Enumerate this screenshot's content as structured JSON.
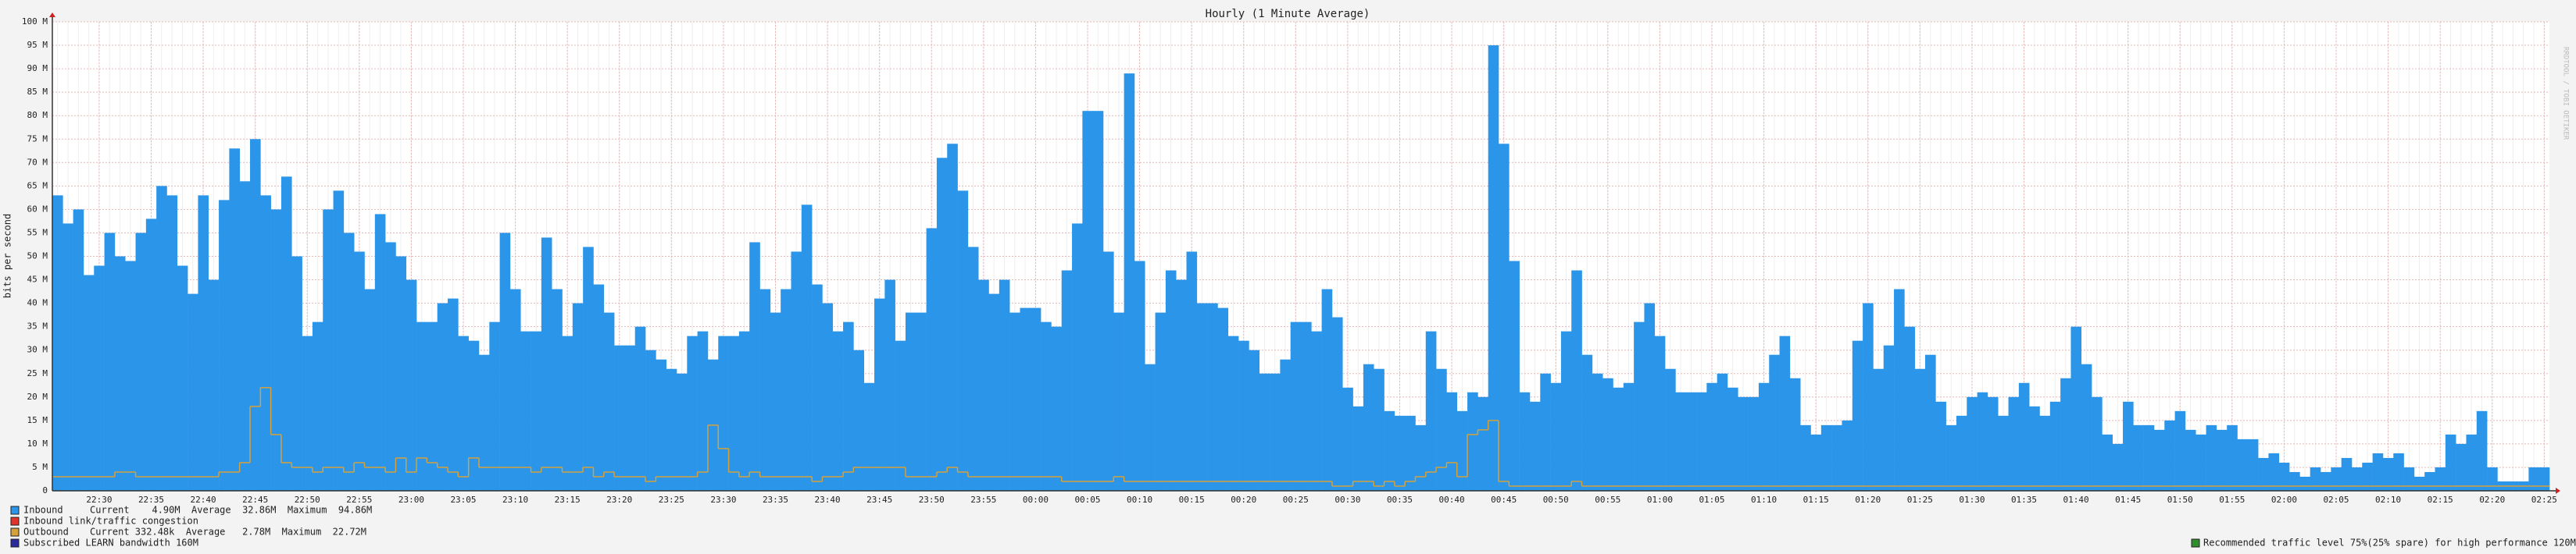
{
  "chart_data": {
    "type": "bar",
    "title": "Hourly (1 Minute Average)",
    "y_label": "bits per second",
    "watermark": "RRDTOOL / TOBI OETIKER",
    "categories": [
      null,
      null,
      null,
      null,
      "22:30",
      null,
      null,
      null,
      null,
      "22:35",
      null,
      null,
      null,
      null,
      "22:40",
      null,
      null,
      null,
      null,
      "22:45",
      null,
      null,
      null,
      null,
      "22:50",
      null,
      null,
      null,
      null,
      "22:55",
      null,
      null,
      null,
      null,
      "23:00",
      null,
      null,
      null,
      null,
      "23:05",
      null,
      null,
      null,
      null,
      "23:10",
      null,
      null,
      null,
      null,
      "23:15",
      null,
      null,
      null,
      null,
      "23:20",
      null,
      null,
      null,
      null,
      "23:25",
      null,
      null,
      null,
      null,
      "23:30",
      null,
      null,
      null,
      null,
      "23:35",
      null,
      null,
      null,
      null,
      "23:40",
      null,
      null,
      null,
      null,
      "23:45",
      null,
      null,
      null,
      null,
      "23:50",
      null,
      null,
      null,
      null,
      "23:55",
      null,
      null,
      null,
      null,
      "00:00",
      null,
      null,
      null,
      null,
      "00:05",
      null,
      null,
      null,
      null,
      "00:10",
      null,
      null,
      null,
      null,
      "00:15",
      null,
      null,
      null,
      null,
      "00:20",
      null,
      null,
      null,
      null,
      "00:25",
      null,
      null,
      null,
      null,
      "00:30",
      null,
      null,
      null,
      null,
      "00:35",
      null,
      null,
      null,
      null,
      "00:40",
      null,
      null,
      null,
      null,
      "00:45",
      null,
      null,
      null,
      null,
      "00:50",
      null,
      null,
      null,
      null,
      "00:55",
      null,
      null,
      null,
      null,
      "01:00",
      null,
      null,
      null,
      null,
      "01:05",
      null,
      null,
      null,
      null,
      "01:10",
      null,
      null,
      null,
      null,
      "01:15",
      null,
      null,
      null,
      null,
      "01:20",
      null,
      null,
      null,
      null,
      "01:25",
      null,
      null,
      null,
      null,
      "01:30",
      null,
      null,
      null,
      null,
      "01:35",
      null,
      null,
      null,
      null,
      "01:40",
      null,
      null,
      null,
      null,
      "01:45",
      null,
      null,
      null,
      null,
      "01:50",
      null,
      null,
      null,
      null,
      "01:55",
      null,
      null,
      null,
      null,
      "02:00",
      null,
      null,
      null,
      null,
      "02:05",
      null,
      null,
      null,
      null,
      "02:10",
      null,
      null,
      null,
      null,
      "02:15",
      null,
      null,
      null,
      null,
      "02:20",
      null,
      null,
      null,
      null,
      "02:25"
    ],
    "series": [
      {
        "name": "Inbound",
        "color": "#2b96e9",
        "stats": "Current    4.90M  Average  32.86M  Maximum  94.86M",
        "values": [
          63,
          57,
          60,
          46,
          48,
          55,
          50,
          49,
          55,
          58,
          65,
          63,
          48,
          42,
          63,
          45,
          62,
          73,
          66,
          75,
          63,
          60,
          67,
          50,
          33,
          36,
          60,
          64,
          55,
          51,
          43,
          59,
          53,
          50,
          45,
          36,
          36,
          40,
          41,
          33,
          32,
          29,
          36,
          55,
          43,
          34,
          34,
          54,
          43,
          33,
          40,
          52,
          44,
          38,
          31,
          31,
          35,
          30,
          28,
          26,
          25,
          33,
          34,
          28,
          33,
          33,
          34,
          53,
          43,
          38,
          43,
          51,
          61,
          44,
          40,
          34,
          36,
          30,
          23,
          41,
          45,
          32,
          38,
          38,
          56,
          71,
          74,
          64,
          52,
          45,
          42,
          45,
          38,
          39,
          39,
          36,
          35,
          47,
          57,
          81,
          81,
          51,
          38,
          89,
          49,
          27,
          38,
          47,
          45,
          51,
          40,
          40,
          39,
          33,
          32,
          30,
          25,
          25,
          28,
          36,
          36,
          34,
          43,
          37,
          22,
          18,
          27,
          26,
          17,
          16,
          16,
          14,
          34,
          26,
          21,
          17,
          21,
          20,
          95,
          74,
          49,
          21,
          19,
          25,
          23,
          34,
          47,
          29,
          25,
          24,
          22,
          23,
          36,
          40,
          33,
          26,
          21,
          21,
          21,
          23,
          25,
          22,
          20,
          20,
          23,
          29,
          33,
          24,
          14,
          12,
          14,
          14,
          15,
          32,
          40,
          26,
          31,
          43,
          35,
          26,
          29,
          19,
          14,
          16,
          20,
          21,
          20,
          16,
          20,
          23,
          18,
          16,
          19,
          24,
          35,
          27,
          20,
          12,
          10,
          19,
          14,
          14,
          13,
          15,
          17,
          13,
          12,
          14,
          13,
          14,
          11,
          11,
          7,
          8,
          6,
          4,
          3,
          5,
          4,
          5,
          7,
          5,
          6,
          8,
          7,
          8,
          5,
          3,
          4,
          5,
          12,
          10,
          12,
          17,
          5,
          2,
          2,
          2,
          5,
          5
        ]
      },
      {
        "name": "Outbound",
        "color": "#d6a13a",
        "stats": "Current 332.48k  Average   2.78M  Maximum  22.72M",
        "values": [
          3,
          3,
          3,
          3,
          3,
          3,
          4,
          4,
          3,
          3,
          3,
          3,
          3,
          3,
          3,
          3,
          4,
          4,
          6,
          18,
          22,
          12,
          6,
          5,
          5,
          4,
          5,
          5,
          4,
          6,
          5,
          5,
          4,
          7,
          4,
          7,
          6,
          5,
          4,
          3,
          7,
          5,
          5,
          5,
          5,
          5,
          4,
          5,
          5,
          4,
          4,
          5,
          3,
          4,
          3,
          3,
          3,
          2,
          3,
          3,
          3,
          3,
          4,
          14,
          9,
          4,
          3,
          4,
          3,
          3,
          3,
          3,
          3,
          2,
          3,
          3,
          4,
          5,
          5,
          5,
          5,
          5,
          3,
          3,
          3,
          4,
          5,
          4,
          3,
          3,
          3,
          3,
          3,
          3,
          3,
          3,
          3,
          2,
          2,
          2,
          2,
          2,
          3,
          2,
          2,
          2,
          2,
          2,
          2,
          2,
          2,
          2,
          2,
          2,
          2,
          2,
          2,
          2,
          2,
          2,
          2,
          2,
          2,
          1,
          1,
          2,
          2,
          1,
          2,
          1,
          2,
          3,
          4,
          5,
          6,
          3,
          12,
          13,
          15,
          2,
          1,
          1,
          1,
          1,
          1,
          1,
          2,
          1,
          1,
          1,
          1,
          1,
          1,
          1,
          1,
          1,
          1,
          1,
          1,
          1,
          1,
          1,
          1,
          1,
          1,
          1,
          1,
          1,
          1,
          1,
          1,
          1,
          1,
          1,
          1,
          1,
          1,
          1,
          1,
          1,
          1,
          1,
          1,
          1,
          1,
          1,
          1,
          1,
          1,
          1,
          1,
          1,
          1,
          1,
          1,
          1,
          1,
          1,
          1,
          1,
          1,
          1,
          1,
          1,
          1,
          1,
          1,
          1,
          1,
          1,
          1,
          1,
          1,
          1,
          1,
          1,
          1,
          1,
          1,
          1,
          1,
          1,
          1,
          1,
          1,
          1,
          1,
          1,
          1,
          1,
          1,
          1,
          1,
          1,
          1,
          1,
          1,
          1,
          1,
          1
        ]
      }
    ],
    "legend_extra": [
      {
        "name": "Inbound link/traffic congestion",
        "color": "#e0342c"
      },
      {
        "name": "Subscribed LEARN bandwidth 160M",
        "color": "#2a2a9c"
      }
    ],
    "note": {
      "text": "Recommended traffic level 75%(25% spare) for high performance 120M",
      "color": "#2f8f2f"
    },
    "ylim": [
      0,
      100
    ],
    "yticks": [
      0,
      {
        "value": 5,
        "label": "5 M"
      },
      {
        "value": 10,
        "label": "10 M"
      },
      {
        "value": 15,
        "label": "15 M"
      },
      {
        "value": 20,
        "label": "20 M"
      },
      {
        "value": 25,
        "label": "25 M"
      },
      {
        "value": 30,
        "label": "30 M"
      },
      {
        "value": 35,
        "label": "35 M"
      },
      {
        "value": 40,
        "label": "40 M"
      },
      {
        "value": 45,
        "label": "45 M"
      },
      {
        "value": 50,
        "label": "50 M"
      },
      {
        "value": 55,
        "label": "55 M"
      },
      {
        "value": 60,
        "label": "60 M"
      },
      {
        "value": 65,
        "label": "65 M"
      },
      {
        "value": 70,
        "label": "70 M"
      },
      {
        "value": 75,
        "label": "75 M"
      },
      {
        "value": 80,
        "label": "80 M"
      },
      {
        "value": 85,
        "label": "85 M"
      },
      {
        "value": 90,
        "label": "90 M"
      },
      {
        "value": 95,
        "label": "95 M"
      },
      {
        "value": 100,
        "label": "100 M"
      }
    ],
    "grid": true
  }
}
